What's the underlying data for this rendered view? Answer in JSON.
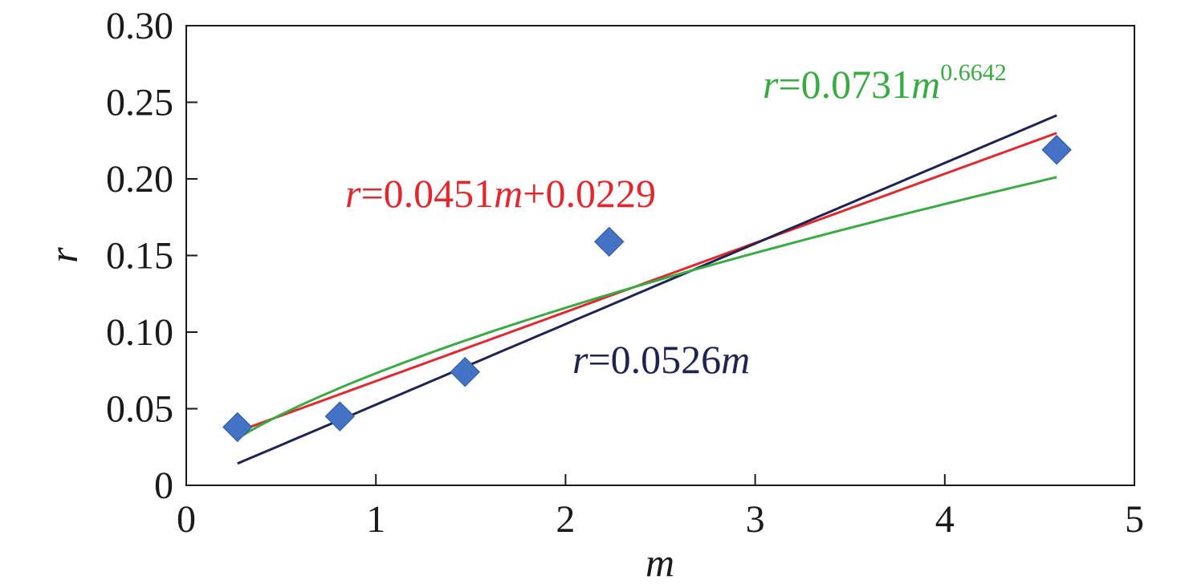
{
  "chart_data": {
    "type": "scatter",
    "xlabel": "m",
    "ylabel": "r",
    "xlim": [
      0,
      5
    ],
    "ylim": [
      0,
      0.3
    ],
    "x_ticks": [
      "0",
      "1",
      "2",
      "3",
      "4",
      "5"
    ],
    "y_ticks": [
      "0",
      "0.05",
      "0.10",
      "0.15",
      "0.20",
      "0.25",
      "0.30"
    ],
    "grid": false,
    "legend": "none",
    "points": {
      "marker": "diamond",
      "color": "#4472C4",
      "x": [
        0.27,
        0.81,
        1.47,
        2.23,
        4.59
      ],
      "y": [
        0.038,
        0.045,
        0.074,
        0.159,
        0.219
      ]
    },
    "fits": [
      {
        "id": "linear",
        "kind": "linear",
        "slope": 0.0451,
        "intercept": 0.0229,
        "x_range": [
          0.27,
          4.59
        ],
        "color": "#e0282e",
        "label": {
          "var": "r",
          "eq": "=0.0451",
          "var2": "m",
          "rest": "+0.0229"
        }
      },
      {
        "id": "proportional",
        "kind": "linear",
        "slope": 0.0526,
        "intercept": 0,
        "x_range": [
          0.27,
          4.59
        ],
        "color": "#1f2350",
        "label": {
          "var": "r",
          "eq": "=0.0526",
          "var2": "m"
        }
      },
      {
        "id": "power",
        "kind": "power",
        "coef": 0.0731,
        "exp": 0.6642,
        "x_range": [
          0.27,
          4.59
        ],
        "color": "#3aaa45",
        "label": {
          "var": "r",
          "eq": "=0.0731",
          "var2": "m",
          "sup": "0.6642"
        }
      }
    ]
  }
}
